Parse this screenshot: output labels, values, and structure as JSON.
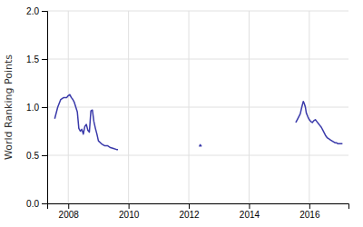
{
  "chart_data": {
    "type": "line",
    "ylabel": "World Ranking Points",
    "color": "#3a3aaa",
    "grid": true,
    "xlim": [
      2007.3,
      2017.3
    ],
    "ylim": [
      0,
      2
    ],
    "xticks": [
      2008,
      2010,
      2012,
      2014,
      2016
    ],
    "yticks": [
      {
        "value": 0,
        "label": "0.0"
      },
      0.5,
      {
        "value": 1.0,
        "label": "1.0"
      },
      1.5,
      {
        "value": 2.0,
        "label": "2.0"
      }
    ],
    "x": [
      2007.55,
      2007.65,
      2007.75,
      2007.85,
      2007.95,
      2008.0,
      2008.05,
      2008.1,
      2008.15,
      2008.2,
      2008.25,
      2008.3,
      2008.35,
      2008.4,
      2008.45,
      2008.5,
      2008.55,
      2008.6,
      2008.65,
      2008.7,
      2008.75,
      2008.8,
      2008.85,
      2008.9,
      2008.95,
      2009.0,
      2009.1,
      2009.2,
      2009.3,
      2009.4,
      2009.5,
      2009.6,
      2009.65,
      null,
      2012.35,
      2012.38,
      2012.42,
      null,
      2015.55,
      2015.6,
      2015.65,
      2015.7,
      2015.75,
      2015.8,
      2015.83,
      2015.87,
      2015.9,
      2015.95,
      2016.0,
      2016.05,
      2016.1,
      2016.15,
      2016.2,
      2016.25,
      2016.3,
      2016.35,
      2016.4,
      2016.45,
      2016.5,
      2016.55,
      2016.6,
      2016.65,
      2016.7,
      2016.75,
      2016.8,
      2016.85,
      2016.9,
      2016.95,
      2017.0,
      2017.05,
      2017.1
    ],
    "values": [
      0.88,
      1.0,
      1.08,
      1.1,
      1.1,
      1.12,
      1.13,
      1.1,
      1.08,
      1.05,
      1.0,
      0.95,
      0.78,
      0.75,
      0.77,
      0.72,
      0.8,
      0.82,
      0.76,
      0.74,
      0.96,
      0.97,
      0.85,
      0.78,
      0.72,
      0.65,
      0.62,
      0.6,
      0.6,
      0.58,
      0.57,
      0.56,
      0.56,
      null,
      0.59,
      0.61,
      0.59,
      null,
      0.84,
      0.87,
      0.9,
      0.93,
      1.0,
      1.06,
      1.04,
      1.0,
      0.94,
      0.9,
      0.87,
      0.85,
      0.84,
      0.86,
      0.87,
      0.85,
      0.83,
      0.81,
      0.79,
      0.76,
      0.73,
      0.7,
      0.68,
      0.67,
      0.66,
      0.65,
      0.64,
      0.63,
      0.63,
      0.62,
      0.62,
      0.62,
      0.62
    ]
  }
}
